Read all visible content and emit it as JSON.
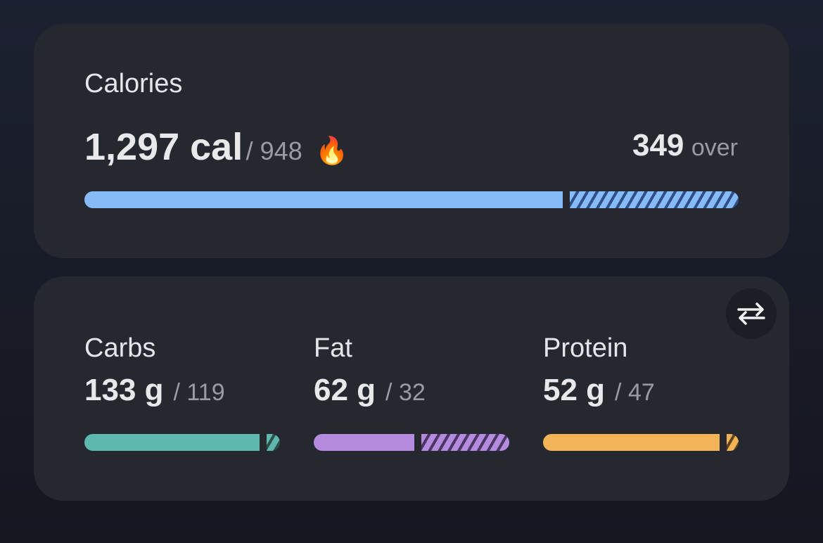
{
  "calories": {
    "label": "Calories",
    "value": 1297,
    "value_label": "1,297 cal",
    "goal": 948,
    "goal_label": "/ 948",
    "icon": "🔥",
    "over": 349,
    "over_label": "over",
    "color": "#86bbf8",
    "stripe": "#2f4f86"
  },
  "macros": [
    {
      "label": "Carbs",
      "value": 133,
      "value_label": "133 g",
      "goal": 119,
      "goal_label": "/ 119",
      "color": "#5fb8ad",
      "stripe": "#2a4f4b"
    },
    {
      "label": "Fat",
      "value": 62,
      "value_label": "62 g",
      "goal": 32,
      "goal_label": "/ 32",
      "color": "#b58be0",
      "stripe": "#4a3563"
    },
    {
      "label": "Protein",
      "value": 52,
      "value_label": "52 g",
      "goal": 47,
      "goal_label": "/ 47",
      "color": "#f2b457",
      "stripe": "#5e4520"
    }
  ]
}
